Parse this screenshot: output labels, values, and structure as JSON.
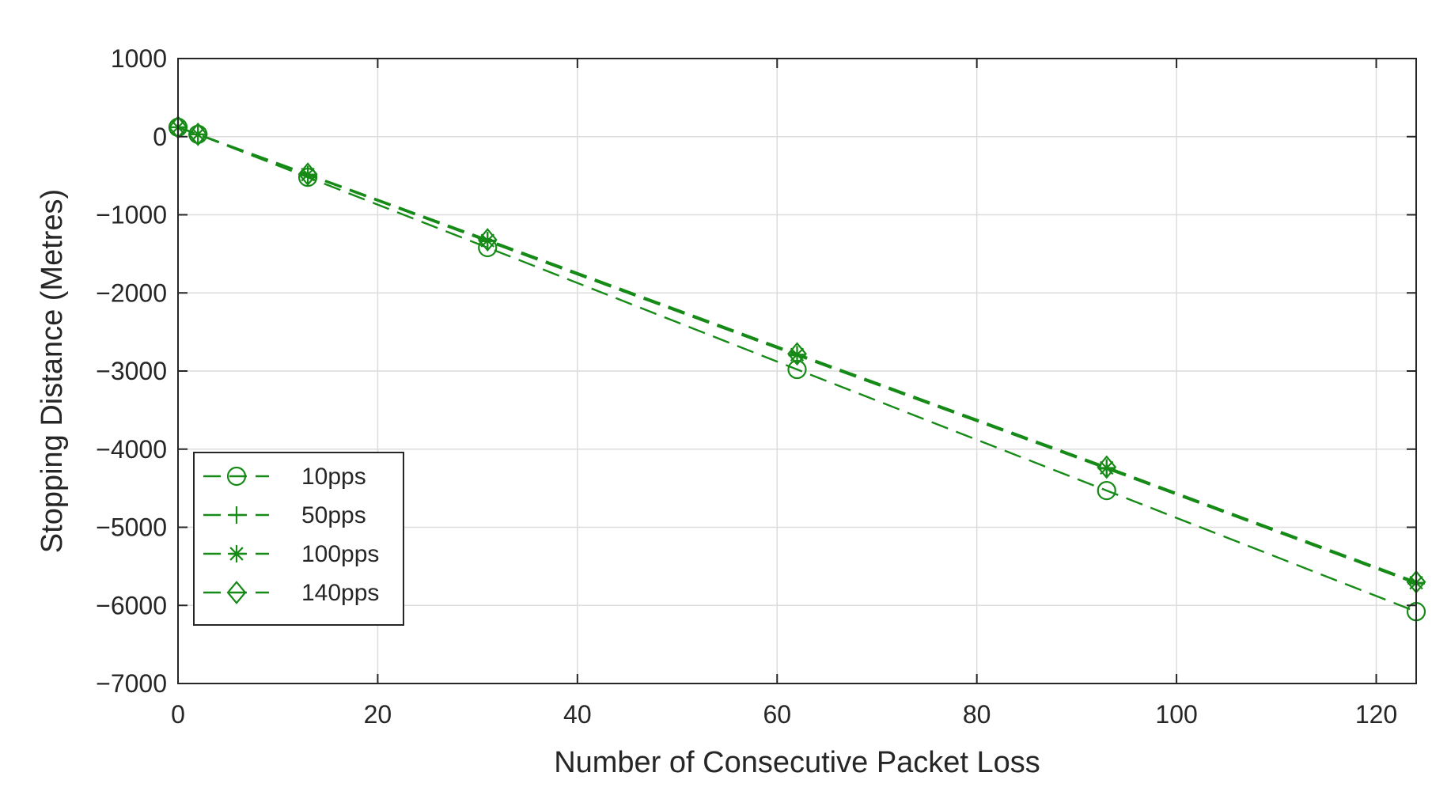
{
  "chart_data": {
    "type": "line",
    "title": "",
    "xlabel": "Number of Consecutive Packet Loss",
    "ylabel": "Stopping Distance (Metres)",
    "xlim": [
      0,
      124
    ],
    "ylim": [
      -7000,
      1000
    ],
    "xticks": [
      0,
      20,
      40,
      60,
      80,
      100,
      120
    ],
    "xtick_labels": [
      "0",
      "20",
      "40",
      "60",
      "80",
      "100",
      "120"
    ],
    "yticks": [
      1000,
      0,
      -1000,
      -2000,
      -3000,
      -4000,
      -5000,
      -6000,
      -7000
    ],
    "ytick_labels": [
      "1000",
      "0",
      "−1000",
      "−2000",
      "−3000",
      "−4000",
      "−5000",
      "−6000",
      "−7000"
    ],
    "grid": true,
    "legend_position": "bottom-left",
    "line_color": "#168a16",
    "x": [
      0,
      2,
      13,
      31,
      62,
      93,
      124
    ],
    "series": [
      {
        "name": "10pps",
        "marker": "circle",
        "values": [
          120,
          30,
          -520,
          -1420,
          -2980,
          -4530,
          -6080
        ]
      },
      {
        "name": "50pps",
        "marker": "plus",
        "values": [
          120,
          30,
          -490,
          -1340,
          -2800,
          -4250,
          -5720
        ]
      },
      {
        "name": "100pps",
        "marker": "star",
        "values": [
          120,
          30,
          -485,
          -1330,
          -2790,
          -4240,
          -5710
        ]
      },
      {
        "name": "140pps",
        "marker": "diamond",
        "values": [
          120,
          30,
          -480,
          -1320,
          -2780,
          -4230,
          -5700
        ]
      }
    ]
  }
}
